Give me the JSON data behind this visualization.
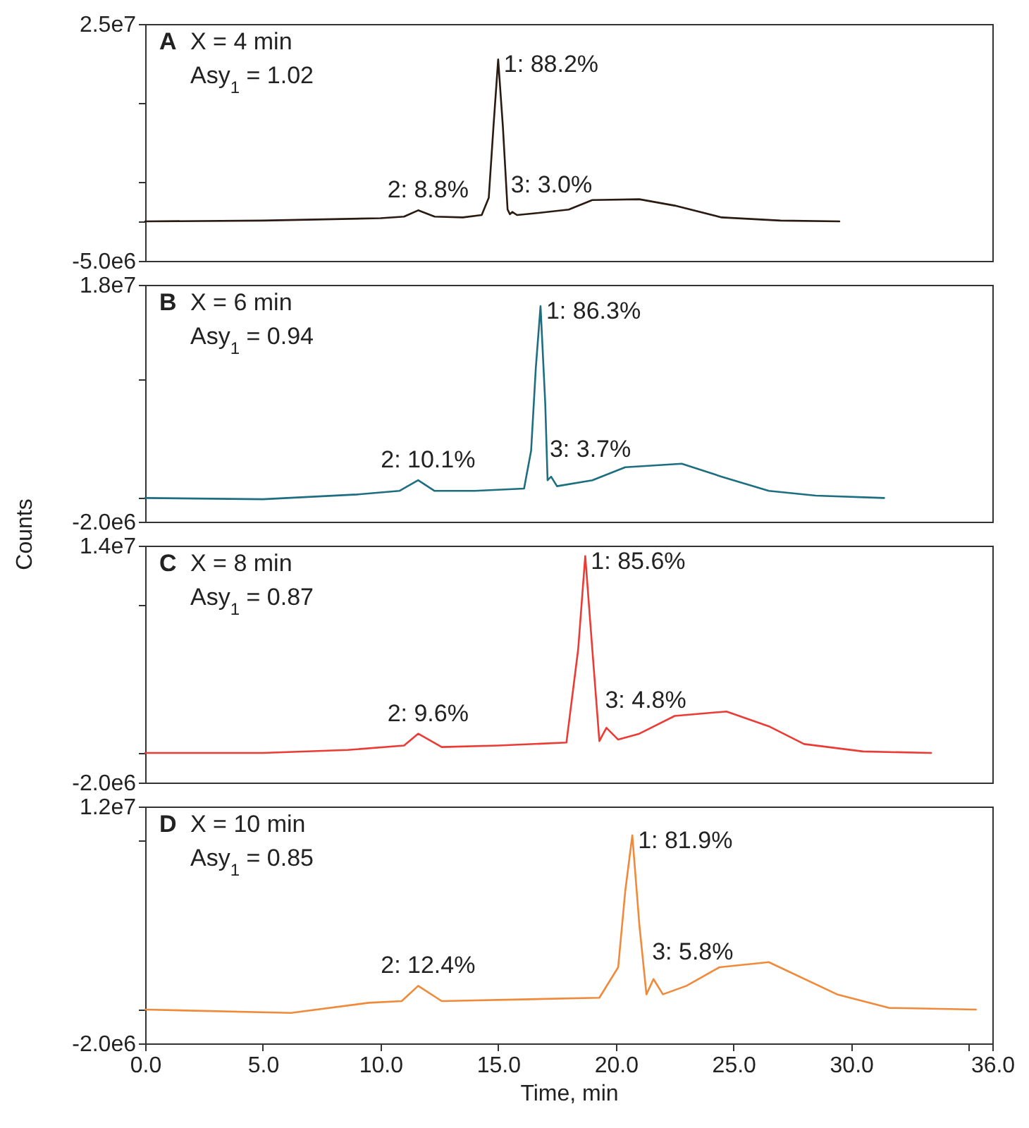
{
  "chart_data": [
    {
      "type": "line",
      "color": "#2a1a10",
      "xlim": [
        0,
        36
      ],
      "ylim": [
        -5000000,
        25000000
      ],
      "tick_labels": "y",
      "yticks": [
        {
          "value": 25000000,
          "label": "2.5e7"
        },
        {
          "value": 15000000,
          "label": null
        },
        {
          "value": 5000000,
          "label": null
        },
        {
          "value": 0,
          "label": null
        },
        {
          "value": -5000000,
          "label": "-5.0e6"
        }
      ],
      "x": [
        0,
        5,
        10,
        11,
        11.6,
        12.3,
        13.5,
        14.3,
        14.6,
        14.8,
        15.0,
        15.2,
        15.4,
        15.5,
        15.6,
        15.8,
        16.5,
        18.0,
        19.0,
        21.0,
        22.5,
        24.5,
        27,
        29.5
      ],
      "values": [
        0,
        100000,
        400000,
        600000,
        1400000,
        600000,
        500000,
        800000,
        3000000,
        12000000,
        20500000,
        12000000,
        1500000,
        900000,
        1200000,
        800000,
        1000000,
        1500000,
        2700000,
        2800000,
        2000000,
        500000,
        100000,
        0
      ],
      "annotations": [
        "A",
        "X = 4 min",
        "Asy$_{1}$ = 1.02",
        {
          "text": "1: 88.2%",
          "x": 15.0,
          "y": 20500000
        },
        {
          "text": "2: 8.8%",
          "x": 11.6,
          "y": 1400000
        },
        {
          "text": "3: 3.0%",
          "x": 15.6,
          "y": 1200000
        }
      ]
    },
    {
      "type": "line",
      "color": "#1d6e80",
      "xlim": [
        0,
        36
      ],
      "ylim": [
        -2000000,
        18000000
      ],
      "tick_labels": "y",
      "ylabel": "Counts",
      "yticks": [
        {
          "value": 18000000,
          "label": "1.8e7"
        },
        {
          "value": 10000000,
          "label": null
        },
        {
          "value": 0,
          "label": null
        },
        {
          "value": -2000000,
          "label": "-2.0e6"
        }
      ],
      "x": [
        0,
        5,
        9,
        10.8,
        11.6,
        12.3,
        14.0,
        16.1,
        16.4,
        16.6,
        16.8,
        17.0,
        17.1,
        17.25,
        17.5,
        19.0,
        20.4,
        22.8,
        24.5,
        26.5,
        28.5,
        31.4
      ],
      "values": [
        0,
        -100000,
        300000,
        600000,
        1500000,
        600000,
        600000,
        800000,
        4000000,
        11000000,
        16200000,
        8000000,
        1500000,
        1800000,
        1000000,
        1500000,
        2600000,
        2900000,
        1800000,
        600000,
        200000,
        0
      ],
      "annotations": [
        "B",
        "X = 6 min",
        "Asy$_{1}$ = 0.94",
        {
          "text": "1: 86.3%",
          "x": 16.8,
          "y": 16200000
        },
        {
          "text": "2: 10.1%",
          "x": 11.6,
          "y": 1500000
        },
        {
          "text": "3: 3.7%",
          "x": 17.25,
          "y": 1800000
        }
      ]
    },
    {
      "type": "line",
      "color": "#ec3b35",
      "xlim": [
        0,
        36
      ],
      "ylim": [
        -2000000,
        14000000
      ],
      "tick_labels": "y",
      "yticks": [
        {
          "value": 14000000,
          "label": "1.4e7"
        },
        {
          "value": 10000000,
          "label": null
        },
        {
          "value": 0,
          "label": null
        },
        {
          "value": -2000000,
          "label": "-2.0e6"
        }
      ],
      "x": [
        0,
        5,
        8.6,
        11.0,
        11.6,
        12.6,
        15,
        17.9,
        18.4,
        18.7,
        19.0,
        19.3,
        19.6,
        20.1,
        21,
        22.5,
        24.7,
        26.5,
        28,
        30.5,
        33.4
      ],
      "values": [
        0,
        0,
        200000,
        500000,
        1300000,
        400000,
        500000,
        700000,
        7000000,
        13300000,
        7000000,
        800000,
        1700000,
        900000,
        1300000,
        2500000,
        2800000,
        1800000,
        600000,
        100000,
        0
      ],
      "annotations": [
        "C",
        "X = 8 min",
        "Asy$_{1}$ = 0.87",
        {
          "text": "1: 85.6%",
          "x": 18.7,
          "y": 13300000
        },
        {
          "text": "2: 9.6%",
          "x": 11.6,
          "y": 1300000
        },
        {
          "text": "3: 4.8%",
          "x": 19.6,
          "y": 1700000
        }
      ]
    },
    {
      "type": "line",
      "color": "#f08a3a",
      "xlim": [
        0,
        36
      ],
      "ylim": [
        -2000000,
        12000000
      ],
      "xlabel": "Time, min",
      "xticks": [
        {
          "value": 0,
          "label": "0.0"
        },
        {
          "value": 5,
          "label": "5.0"
        },
        {
          "value": 10,
          "label": "10.0"
        },
        {
          "value": 15,
          "label": "15.0"
        },
        {
          "value": 20,
          "label": "20.0"
        },
        {
          "value": 25,
          "label": "25.0"
        },
        {
          "value": 30,
          "label": "30.0"
        },
        {
          "value": 35,
          "label": null
        },
        {
          "value": 36,
          "label": "36.0"
        }
      ],
      "yticks": [
        {
          "value": 12000000,
          "label": "1.2e7"
        },
        {
          "value": 10000000,
          "label": null
        },
        {
          "value": 0,
          "label": null
        },
        {
          "value": -2000000,
          "label": "-2.0e6"
        }
      ],
      "x": [
        0,
        6.2,
        9.5,
        10.9,
        11.6,
        12.6,
        16,
        19.3,
        20.1,
        20.4,
        20.7,
        21.0,
        21.3,
        21.6,
        22.0,
        23,
        24.4,
        26.5,
        29.4,
        31.6,
        35.3
      ],
      "values": [
        0,
        -200000,
        400000,
        500000,
        1400000,
        500000,
        600000,
        700000,
        2500000,
        7000000,
        10300000,
        5000000,
        900000,
        1800000,
        900000,
        1400000,
        2500000,
        2800000,
        900000,
        100000,
        0
      ],
      "annotations": [
        "D",
        "X = 10 min",
        "Asy$_{1}$ = 0.85",
        {
          "text": "1: 81.9%",
          "x": 20.7,
          "y": 10300000
        },
        {
          "text": "2: 12.4%",
          "x": 11.6,
          "y": 1400000
        },
        {
          "text": "3: 5.8%",
          "x": 21.6,
          "y": 1800000
        }
      ]
    }
  ]
}
